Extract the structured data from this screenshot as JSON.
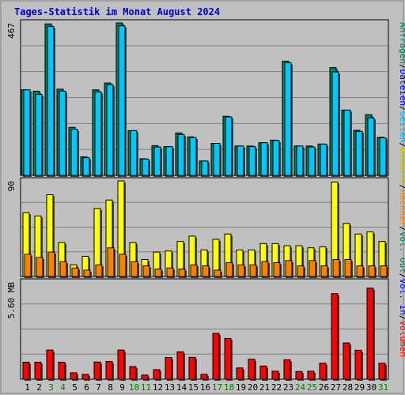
{
  "title": "Tages-Statistik im Monat August 2024",
  "colors": {
    "anfragen": "#00805c",
    "dateien": "#00c8ff",
    "besuche": "#ffff00",
    "rechner": "#ff8000",
    "volumen": "#ff0000",
    "background": "#c0c0c0",
    "legend_anfragen": "#00805c",
    "legend_dateien": "#0000ff",
    "legend_seiten": "#00b4ff",
    "legend_besuche": "#c8c800",
    "legend_rechner": "#ff8000",
    "legend_volout": "#00805c",
    "legend_volin": "#0000ff",
    "legend_volumen": "#ff0000",
    "weekend_day": "#008000",
    "weekday": "#000000"
  },
  "legend": {
    "top": [
      "Anfragen",
      "Dateien",
      "Seiten",
      "Besuche"
    ],
    "mid": [
      "Rechner",
      "Vol. Out",
      "Vol. In",
      "Volumen"
    ],
    "seps": [
      "/",
      "/",
      "/",
      "/",
      "/",
      "/",
      "/"
    ]
  },
  "chart_data": [
    {
      "type": "bar",
      "title": "Tages-Statistik im Monat August 2024",
      "ylabel": "467",
      "ylim": [
        0,
        467
      ],
      "grid": true,
      "categories": [
        "1",
        "2",
        "3",
        "4",
        "5",
        "6",
        "7",
        "8",
        "9",
        "10",
        "11",
        "12",
        "13",
        "14",
        "15",
        "16",
        "17",
        "18",
        "19",
        "20",
        "21",
        "22",
        "23",
        "24",
        "25",
        "26",
        "27",
        "28",
        "29",
        "30",
        "31"
      ],
      "weekend": [
        3,
        4,
        10,
        11,
        17,
        18,
        24,
        25,
        31
      ],
      "series": [
        {
          "name": "Anfragen",
          "values": [
            262,
            258,
            464,
            264,
            147,
            57,
            262,
            283,
            467,
            137,
            51,
            91,
            88,
            130,
            118,
            44,
            98,
            181,
            90,
            90,
            100,
            108,
            350,
            90,
            90,
            96,
            330,
            200,
            138,
            186,
            117
          ]
        },
        {
          "name": "Dateien",
          "values": [
            262,
            248,
            456,
            258,
            141,
            54,
            256,
            278,
            458,
            137,
            50,
            87,
            88,
            125,
            116,
            44,
            98,
            179,
            90,
            88,
            100,
            107,
            345,
            90,
            87,
            96,
            317,
            200,
            135,
            176,
            115
          ]
        }
      ]
    },
    {
      "type": "bar",
      "ylabel": "90",
      "ylim": [
        0,
        90
      ],
      "grid": true,
      "series": [
        {
          "name": "Besuche",
          "values": [
            60,
            57,
            77,
            32,
            11,
            19,
            64,
            72,
            90,
            32,
            16,
            23,
            24,
            33,
            38,
            25,
            35,
            40,
            25,
            25,
            31,
            31,
            29,
            29,
            27,
            28,
            89,
            50,
            40,
            42,
            33
          ]
        },
        {
          "name": "Rechner",
          "values": [
            21,
            18,
            23,
            14,
            8,
            6,
            11,
            27,
            21,
            14,
            10,
            7,
            8,
            7,
            11,
            10,
            6,
            13,
            11,
            11,
            14,
            13,
            15,
            10,
            15,
            10,
            16,
            16,
            10,
            10,
            10
          ]
        }
      ]
    },
    {
      "type": "bar",
      "ylabel": "5.60 MB",
      "ylim": [
        0,
        5.6
      ],
      "grid": true,
      "series": [
        {
          "name": "Volumen",
          "values": [
            0.98,
            0.98,
            1.68,
            0.98,
            0.37,
            0.28,
            0.99,
            1.02,
            1.68,
            0.73,
            0.24,
            0.55,
            1.25,
            1.58,
            1.26,
            0.28,
            2.64,
            2.35,
            0.65,
            1.15,
            0.76,
            0.46,
            1.12,
            0.44,
            0.46,
            0.92,
            4.93,
            2.09,
            1.67,
            5.25,
            0.92
          ]
        }
      ]
    }
  ]
}
